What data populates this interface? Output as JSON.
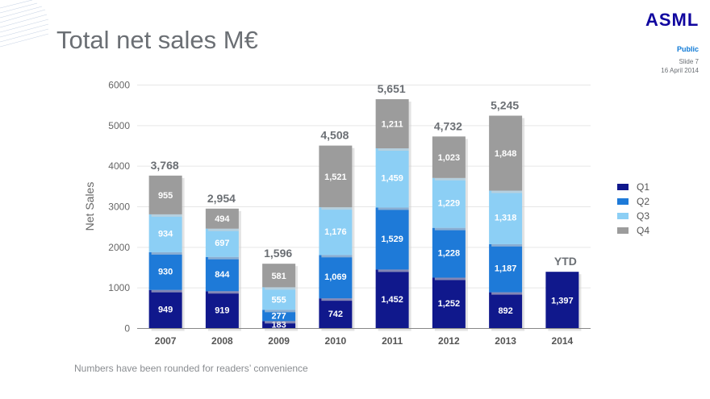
{
  "slide": {
    "title": "Total net sales M€",
    "logo": "ASML",
    "classification": "Public",
    "slide_number": "Slide 7",
    "date": "16 April 2014",
    "footnote": "Numbers have been rounded for readers’ convenience"
  },
  "colors": {
    "Q1": "#10188c",
    "Q2": "#1e7ad8",
    "Q3": "#8ccff5",
    "Q4": "#9c9c9c"
  },
  "chart_data": {
    "type": "bar",
    "stacked": true,
    "ylabel": "Net Sales",
    "ylim": [
      0,
      6000
    ],
    "yticks": [
      0,
      1000,
      2000,
      3000,
      4000,
      5000,
      6000
    ],
    "grid": true,
    "legend_position": "right",
    "categories": [
      "2007",
      "2008",
      "2009",
      "2010",
      "2011",
      "2012",
      "2013",
      "2014"
    ],
    "series": [
      {
        "name": "Q1",
        "values": [
          949,
          919,
          183,
          742,
          1452,
          1252,
          892,
          1397
        ]
      },
      {
        "name": "Q2",
        "values": [
          930,
          844,
          277,
          1069,
          1529,
          1228,
          1187,
          null
        ]
      },
      {
        "name": "Q3",
        "values": [
          934,
          697,
          555,
          1176,
          1459,
          1229,
          1318,
          null
        ]
      },
      {
        "name": "Q4",
        "values": [
          955,
          494,
          581,
          1521,
          1211,
          1023,
          1848,
          null
        ]
      }
    ],
    "totals": [
      "3,768",
      "2,954",
      "1,596",
      "4,508",
      "5,651",
      "4,732",
      "5,245",
      "YTD"
    ]
  }
}
